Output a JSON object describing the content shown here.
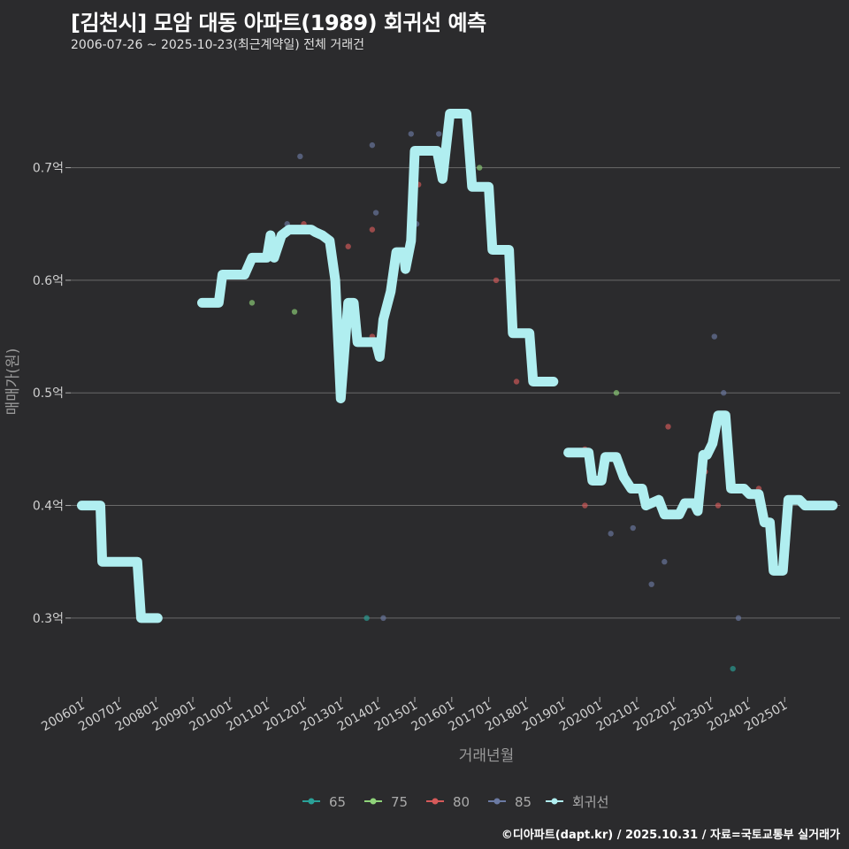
{
  "header": {
    "title": "[김천시] 모암 대동 아파트(1989) 회귀선 예측",
    "subtitle": "2006-07-26 ~ 2025-10-23(최근계약일) 전체 거래건"
  },
  "footer": "©디아파트(dapt.kr) / 2025.10.31 / 자료=국토교통부 실거래가",
  "colors": {
    "background": "#2b2b2d",
    "grid": "#6a6a6a",
    "regression": "#b0eef0",
    "s65": "#2aa198",
    "s75": "#8fd37a",
    "s80": "#d65a5a",
    "s85": "#6b7aa3"
  },
  "chart_data": {
    "type": "line+scatter",
    "title": "[김천시] 모암 대동 아파트(1989) 회귀선 예측",
    "xlabel": "거래년월",
    "ylabel": "매매가(원)",
    "xlim": [
      2005.7,
      2026.5
    ],
    "ylim": [
      0.23,
      0.79
    ],
    "yticks": [
      0.3,
      0.4,
      0.5,
      0.6,
      0.7
    ],
    "ytick_labels": [
      "0.3억",
      "0.4억",
      "0.5억",
      "0.6억",
      "0.7억"
    ],
    "xticks": [
      2006,
      2007,
      2008,
      2009,
      2010,
      2011,
      2012,
      2013,
      2014,
      2015,
      2016,
      2017,
      2018,
      2019,
      2020,
      2021,
      2022,
      2023,
      2024,
      2025
    ],
    "xtick_labels": [
      "200601",
      "200701",
      "200801",
      "200901",
      "201001",
      "201101",
      "201201",
      "201301",
      "201401",
      "201501",
      "201601",
      "201701",
      "201801",
      "201901",
      "202001",
      "202101",
      "202201",
      "202301",
      "202401",
      "202501"
    ],
    "legend": [
      {
        "name": "65",
        "color": "#2aa198"
      },
      {
        "name": "75",
        "color": "#8fd37a"
      },
      {
        "name": "80",
        "color": "#d65a5a"
      },
      {
        "name": "85",
        "color": "#6b7aa3"
      },
      {
        "name": "회귀선",
        "color": "#b0eef0"
      }
    ],
    "scatter": [
      {
        "name": "65",
        "points": [
          [
            2013.7,
            0.3
          ],
          [
            2023.6,
            0.255
          ]
        ]
      },
      {
        "name": "75",
        "points": [
          [
            2010.6,
            0.58
          ],
          [
            2011.75,
            0.572
          ],
          [
            2016.75,
            0.7
          ],
          [
            2020.45,
            0.5
          ]
        ]
      },
      {
        "name": "80",
        "points": [
          [
            2012.0,
            0.65
          ],
          [
            2013.2,
            0.63
          ],
          [
            2013.85,
            0.645
          ],
          [
            2013.85,
            0.55
          ],
          [
            2015.1,
            0.685
          ],
          [
            2017.2,
            0.6
          ],
          [
            2017.75,
            0.51
          ],
          [
            2019.6,
            0.45
          ],
          [
            2019.6,
            0.4
          ],
          [
            2021.85,
            0.47
          ],
          [
            2022.85,
            0.43
          ],
          [
            2023.2,
            0.4
          ],
          [
            2024.3,
            0.415
          ]
        ]
      },
      {
        "name": "85",
        "points": [
          [
            2011.1,
            0.63
          ],
          [
            2011.55,
            0.65
          ],
          [
            2011.9,
            0.71
          ],
          [
            2013.85,
            0.72
          ],
          [
            2013.95,
            0.66
          ],
          [
            2014.15,
            0.3
          ],
          [
            2014.9,
            0.73
          ],
          [
            2015.05,
            0.65
          ],
          [
            2015.65,
            0.73
          ],
          [
            2020.3,
            0.375
          ],
          [
            2020.9,
            0.38
          ],
          [
            2021.4,
            0.33
          ],
          [
            2021.75,
            0.35
          ],
          [
            2023.1,
            0.55
          ],
          [
            2023.35,
            0.5
          ],
          [
            2023.75,
            0.3
          ]
        ]
      }
    ],
    "regression_segments": [
      [
        [
          2006.0,
          0.4
        ],
        [
          2006.5,
          0.4
        ],
        [
          2006.55,
          0.35
        ],
        [
          2007.5,
          0.35
        ],
        [
          2007.6,
          0.3
        ],
        [
          2008.05,
          0.3
        ]
      ],
      [
        [
          2009.25,
          0.58
        ],
        [
          2009.7,
          0.58
        ],
        [
          2009.8,
          0.605
        ],
        [
          2010.4,
          0.605
        ],
        [
          2010.6,
          0.62
        ],
        [
          2011.0,
          0.62
        ],
        [
          2011.1,
          0.64
        ],
        [
          2011.2,
          0.62
        ],
        [
          2011.4,
          0.64
        ],
        [
          2011.6,
          0.645
        ],
        [
          2012.2,
          0.645
        ],
        [
          2012.3,
          0.643
        ],
        [
          2012.5,
          0.64
        ],
        [
          2012.7,
          0.635
        ],
        [
          2012.85,
          0.6
        ],
        [
          2013.0,
          0.495
        ],
        [
          2013.2,
          0.58
        ],
        [
          2013.35,
          0.58
        ],
        [
          2013.45,
          0.545
        ],
        [
          2013.95,
          0.545
        ],
        [
          2014.05,
          0.532
        ],
        [
          2014.15,
          0.565
        ],
        [
          2014.35,
          0.59
        ],
        [
          2014.5,
          0.625
        ],
        [
          2014.7,
          0.625
        ],
        [
          2014.75,
          0.61
        ],
        [
          2014.9,
          0.635
        ],
        [
          2015.0,
          0.715
        ],
        [
          2015.6,
          0.715
        ],
        [
          2015.75,
          0.69
        ],
        [
          2015.95,
          0.748
        ],
        [
          2016.4,
          0.748
        ],
        [
          2016.55,
          0.683
        ],
        [
          2017.0,
          0.683
        ],
        [
          2017.1,
          0.627
        ],
        [
          2017.55,
          0.627
        ],
        [
          2017.65,
          0.553
        ],
        [
          2018.1,
          0.553
        ],
        [
          2018.2,
          0.51
        ],
        [
          2018.75,
          0.51
        ]
      ],
      [
        [
          2019.15,
          0.447
        ],
        [
          2019.7,
          0.447
        ],
        [
          2019.8,
          0.422
        ],
        [
          2020.05,
          0.422
        ],
        [
          2020.15,
          0.443
        ],
        [
          2020.45,
          0.443
        ],
        [
          2020.65,
          0.425
        ],
        [
          2020.85,
          0.415
        ],
        [
          2021.15,
          0.415
        ],
        [
          2021.25,
          0.4
        ],
        [
          2021.6,
          0.405
        ],
        [
          2021.75,
          0.392
        ],
        [
          2022.15,
          0.392
        ],
        [
          2022.3,
          0.402
        ],
        [
          2022.55,
          0.402
        ],
        [
          2022.65,
          0.395
        ],
        [
          2022.8,
          0.445
        ],
        [
          2022.9,
          0.445
        ],
        [
          2023.05,
          0.455
        ],
        [
          2023.2,
          0.48
        ],
        [
          2023.4,
          0.48
        ],
        [
          2023.55,
          0.415
        ],
        [
          2023.9,
          0.415
        ],
        [
          2024.05,
          0.41
        ],
        [
          2024.3,
          0.41
        ],
        [
          2024.45,
          0.385
        ],
        [
          2024.6,
          0.385
        ],
        [
          2024.7,
          0.342
        ],
        [
          2024.95,
          0.342
        ],
        [
          2025.1,
          0.405
        ],
        [
          2025.4,
          0.405
        ],
        [
          2025.55,
          0.4
        ],
        [
          2026.3,
          0.4
        ]
      ]
    ]
  }
}
